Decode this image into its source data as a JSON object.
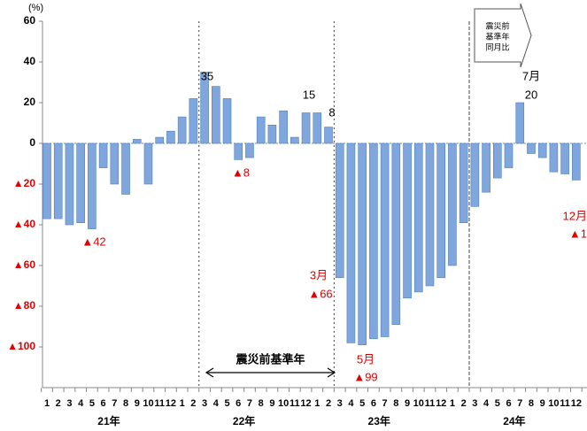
{
  "chart_data": {
    "type": "bar",
    "unit": "(%)",
    "categories": [
      "1",
      "2",
      "3",
      "4",
      "5",
      "6",
      "7",
      "8",
      "9",
      "10",
      "11",
      "12",
      "1",
      "2",
      "3",
      "4",
      "5",
      "6",
      "7",
      "8",
      "9",
      "10",
      "11",
      "12",
      "1",
      "2",
      "3",
      "4",
      "5",
      "6",
      "7",
      "8",
      "9",
      "10",
      "11",
      "12",
      "1",
      "2",
      "3",
      "4",
      "5",
      "6",
      "7",
      "8",
      "9",
      "10",
      "11",
      "12"
    ],
    "years": [
      "21年",
      "22年",
      "23年",
      "24年"
    ],
    "values": [
      -37,
      -37,
      -40,
      -39,
      -42,
      -12,
      -20,
      -25,
      2,
      -20,
      3,
      6,
      13,
      22,
      35,
      28,
      22,
      -8,
      -7,
      13,
      9,
      16,
      3,
      15,
      15,
      8,
      -66,
      -98,
      -99,
      -96,
      -95,
      -89,
      -76,
      -73,
      -70,
      -66,
      -60,
      -39,
      -31,
      -24,
      -17,
      -12,
      20,
      -5,
      -7,
      -14,
      -15,
      -18
    ],
    "color": "#7fa7dd",
    "ylim": [
      -120,
      60
    ],
    "yticks": [
      {
        "value": -100,
        "label": "▲100"
      },
      {
        "value": -80,
        "label": "▲80"
      },
      {
        "value": -60,
        "label": "▲60"
      },
      {
        "value": -40,
        "label": "▲40"
      },
      {
        "value": -20,
        "label": "▲20"
      },
      0,
      20,
      40,
      60
    ],
    "annotations": [
      {
        "text": "35",
        "color": "#000000"
      },
      {
        "text": "15",
        "color": "#000000"
      },
      {
        "text": "8",
        "color": "#000000"
      },
      {
        "text": "7月",
        "color": "#000000"
      },
      {
        "text": "20",
        "color": "#000000"
      },
      {
        "text": "▲8",
        "color": "#e00000"
      },
      {
        "text": "▲42",
        "color": "#e00000"
      },
      {
        "text": "3月",
        "color": "#e00000"
      },
      {
        "text": "▲66",
        "color": "#e00000"
      },
      {
        "text": "5月",
        "color": "#e00000"
      },
      {
        "text": "▲99",
        "color": "#e00000"
      },
      {
        "text": "12月",
        "color": "#e00000"
      },
      {
        "text": "▲1",
        "color": "#e00000"
      }
    ],
    "period_label": "震災前基準年",
    "box_label": [
      "震災前",
      "基準年",
      "同月比"
    ]
  }
}
